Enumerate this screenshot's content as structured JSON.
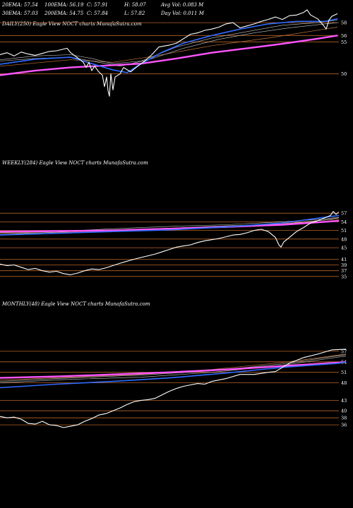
{
  "header": {
    "row1": [
      {
        "label": "20EMA",
        "value": "57.54"
      },
      {
        "label": "100EMA",
        "value": "56.19"
      },
      {
        "label": "C",
        "value": "57.91"
      },
      {
        "label": "H",
        "value": "58.07"
      },
      {
        "label": "Avg Vol",
        "value": "0.083 M"
      }
    ],
    "row2": [
      {
        "label": "30EMA",
        "value": "57.03"
      },
      {
        "label": "200EMA",
        "value": "54.75"
      },
      {
        "label": "C",
        "value": "57.84"
      },
      {
        "label": "L",
        "value": "57.82"
      },
      {
        "label": "Day Vol",
        "value": "0.011 M"
      }
    ]
  },
  "colors": {
    "background": "#000000",
    "price": "#ffffff",
    "ema_blue": "#2f6bff",
    "ema_magenta": "#ff55ff",
    "level_line": "#b8642a",
    "ema_minor": "#c8c8c8",
    "ema_brown": "#c87a3a"
  },
  "chart_data": [
    {
      "type": "line",
      "panel": "daily",
      "title": "DAILY(250) Eagle   View  NOCT charts MunafaSutra.com",
      "ylim": [
        45,
        60
      ],
      "y_ticks": [
        58,
        56,
        55,
        50
      ],
      "levels": [
        58,
        56,
        55,
        50
      ],
      "x_points": 250,
      "series": {
        "price": [
          [
            0,
            53.0
          ],
          [
            10,
            53.3
          ],
          [
            20,
            52.8
          ],
          [
            30,
            53.4
          ],
          [
            40,
            53.1
          ],
          [
            50,
            52.9
          ],
          [
            60,
            53.2
          ],
          [
            70,
            53.5
          ],
          [
            80,
            53.6
          ],
          [
            95,
            54.0
          ],
          [
            100,
            53.3
          ],
          [
            110,
            52.5
          ],
          [
            118,
            51.8
          ],
          [
            122,
            51.0
          ],
          [
            126,
            51.8
          ],
          [
            130,
            50.5
          ],
          [
            134,
            51.2
          ],
          [
            140,
            50.3
          ],
          [
            145,
            49.8
          ],
          [
            148,
            48.0
          ],
          [
            151,
            49.5
          ],
          [
            153,
            47.4
          ],
          [
            155,
            46.5
          ],
          [
            157,
            50.0
          ],
          [
            160,
            47.5
          ],
          [
            163,
            49.5
          ],
          [
            170,
            50.0
          ],
          [
            175,
            51.0
          ],
          [
            185,
            50.3
          ],
          [
            195,
            51.2
          ],
          [
            205,
            52.0
          ],
          [
            215,
            53.0
          ],
          [
            225,
            54.2
          ],
          [
            240,
            54.5
          ],
          [
            250,
            54.8
          ],
          [
            260,
            55.5
          ],
          [
            270,
            56.2
          ],
          [
            280,
            56.4
          ],
          [
            290,
            56.8
          ],
          [
            300,
            57.0
          ],
          [
            310,
            57.3
          ],
          [
            320,
            57.8
          ],
          [
            330,
            58.0
          ],
          [
            340,
            57.2
          ],
          [
            350,
            57.5
          ],
          [
            360,
            57.8
          ],
          [
            370,
            58.2
          ],
          [
            380,
            58.5
          ],
          [
            390,
            58.9
          ],
          [
            400,
            58.5
          ],
          [
            410,
            59.1
          ],
          [
            420,
            59.2
          ],
          [
            430,
            59.6
          ],
          [
            435,
            60.0
          ],
          [
            440,
            59.2
          ],
          [
            450,
            58.6
          ],
          [
            458,
            57.6
          ],
          [
            462,
            57.0
          ],
          [
            466,
            58.4
          ],
          [
            470,
            59.0
          ],
          [
            478,
            59.4
          ]
        ],
        "ema_blue": [
          [
            0,
            51.5
          ],
          [
            50,
            52.3
          ],
          [
            100,
            52.6
          ],
          [
            130,
            51.6
          ],
          [
            160,
            50.6
          ],
          [
            180,
            50.2
          ],
          [
            200,
            51.6
          ],
          [
            230,
            53.4
          ],
          [
            260,
            54.8
          ],
          [
            300,
            56.0
          ],
          [
            340,
            57.0
          ],
          [
            380,
            57.8
          ],
          [
            420,
            58.2
          ],
          [
            460,
            58.2
          ],
          [
            478,
            58.6
          ]
        ],
        "ema_magenta": [
          [
            0,
            49.8
          ],
          [
            50,
            50.5
          ],
          [
            100,
            51.0
          ],
          [
            150,
            51.3
          ],
          [
            200,
            51.6
          ],
          [
            250,
            52.4
          ],
          [
            300,
            53.3
          ],
          [
            350,
            54.0
          ],
          [
            400,
            54.7
          ],
          [
            450,
            55.5
          ],
          [
            478,
            56.0
          ]
        ],
        "ema_minor_1": [
          [
            0,
            52.2
          ],
          [
            50,
            52.8
          ],
          [
            100,
            53.0
          ],
          [
            130,
            52.4
          ],
          [
            160,
            51.6
          ],
          [
            200,
            52.0
          ],
          [
            250,
            54.2
          ],
          [
            300,
            55.6
          ],
          [
            350,
            56.6
          ],
          [
            400,
            57.6
          ],
          [
            450,
            58.0
          ],
          [
            478,
            58.4
          ]
        ],
        "ema_minor_2": [
          [
            0,
            52.0
          ],
          [
            50,
            52.4
          ],
          [
            100,
            52.6
          ],
          [
            140,
            51.8
          ],
          [
            170,
            51.2
          ],
          [
            210,
            52.2
          ],
          [
            260,
            54.0
          ],
          [
            310,
            55.4
          ],
          [
            360,
            56.4
          ],
          [
            410,
            57.2
          ],
          [
            460,
            57.8
          ],
          [
            478,
            58.0
          ]
        ],
        "ema_brown": [
          [
            0,
            51.2
          ],
          [
            100,
            52.2
          ],
          [
            160,
            51.8
          ],
          [
            220,
            52.8
          ],
          [
            300,
            54.4
          ],
          [
            380,
            55.6
          ],
          [
            460,
            57.0
          ],
          [
            478,
            57.3
          ]
        ]
      }
    },
    {
      "type": "line",
      "panel": "weekly",
      "title": "WEEKLY(284) Eagle   View  NOCT charts MunafaSutra.com",
      "ylim": [
        33,
        59
      ],
      "y_ticks": [
        57,
        54,
        51,
        48,
        45,
        41,
        39,
        37,
        35
      ],
      "levels": [
        57,
        54,
        51,
        48,
        45,
        41,
        39,
        37,
        35
      ],
      "x_points": 284,
      "series": {
        "price": [
          [
            0,
            39.3
          ],
          [
            10,
            38.8
          ],
          [
            20,
            39.0
          ],
          [
            30,
            38.2
          ],
          [
            40,
            37.4
          ],
          [
            50,
            37.8
          ],
          [
            60,
            37.0
          ],
          [
            70,
            36.5
          ],
          [
            80,
            36.8
          ],
          [
            90,
            36.0
          ],
          [
            100,
            35.6
          ],
          [
            110,
            36.2
          ],
          [
            120,
            37.0
          ],
          [
            130,
            37.6
          ],
          [
            140,
            37.4
          ],
          [
            150,
            38.0
          ],
          [
            160,
            38.8
          ],
          [
            170,
            39.6
          ],
          [
            180,
            40.3
          ],
          [
            190,
            41.0
          ],
          [
            200,
            41.6
          ],
          [
            210,
            42.2
          ],
          [
            220,
            42.8
          ],
          [
            230,
            43.6
          ],
          [
            240,
            44.4
          ],
          [
            250,
            45.2
          ],
          [
            260,
            45.6
          ],
          [
            270,
            46.0
          ],
          [
            280,
            46.8
          ],
          [
            290,
            47.4
          ],
          [
            300,
            47.8
          ],
          [
            310,
            48.2
          ],
          [
            320,
            48.8
          ],
          [
            330,
            49.4
          ],
          [
            340,
            49.6
          ],
          [
            350,
            50.2
          ],
          [
            360,
            51.0
          ],
          [
            370,
            51.4
          ],
          [
            380,
            50.6
          ],
          [
            390,
            48.6
          ],
          [
            395,
            46.0
          ],
          [
            398,
            45.2
          ],
          [
            402,
            47.0
          ],
          [
            410,
            48.6
          ],
          [
            420,
            50.6
          ],
          [
            430,
            52.0
          ],
          [
            440,
            53.6
          ],
          [
            450,
            54.4
          ],
          [
            460,
            55.4
          ],
          [
            468,
            56.2
          ],
          [
            472,
            57.6
          ],
          [
            476,
            56.6
          ],
          [
            480,
            57.4
          ]
        ],
        "ema_blue": [
          [
            0,
            49.4
          ],
          [
            80,
            50.0
          ],
          [
            160,
            50.6
          ],
          [
            240,
            51.2
          ],
          [
            320,
            52.2
          ],
          [
            400,
            53.6
          ],
          [
            460,
            55.6
          ],
          [
            480,
            56.2
          ]
        ],
        "ema_magenta": [
          [
            0,
            50.6
          ],
          [
            80,
            50.8
          ],
          [
            160,
            51.0
          ],
          [
            240,
            51.6
          ],
          [
            320,
            52.2
          ],
          [
            400,
            53.0
          ],
          [
            460,
            54.0
          ],
          [
            480,
            54.4
          ]
        ],
        "ema_minor_1": [
          [
            0,
            49.6
          ],
          [
            80,
            50.4
          ],
          [
            160,
            51.2
          ],
          [
            240,
            51.8
          ],
          [
            320,
            52.6
          ],
          [
            400,
            53.2
          ],
          [
            460,
            54.6
          ],
          [
            480,
            55.4
          ]
        ],
        "ema_minor_2": [
          [
            0,
            50.2
          ],
          [
            80,
            50.6
          ],
          [
            160,
            51.6
          ],
          [
            240,
            52.4
          ],
          [
            320,
            53.0
          ],
          [
            400,
            54.0
          ],
          [
            460,
            55.0
          ],
          [
            480,
            55.6
          ]
        ],
        "ema_brown": [
          [
            0,
            50.0
          ],
          [
            100,
            50.4
          ],
          [
            200,
            51.0
          ],
          [
            300,
            52.0
          ],
          [
            400,
            53.4
          ],
          [
            480,
            55.0
          ]
        ]
      }
    },
    {
      "type": "line",
      "panel": "monthly",
      "title": "MONTHLY(48) Eagle   View  NOCT charts MunafaSutra.com",
      "ylim": [
        34,
        59
      ],
      "y_ticks": [
        57,
        54,
        51,
        48,
        43,
        40,
        38,
        36
      ],
      "levels": [
        57,
        54,
        51,
        48,
        43,
        40,
        38,
        36
      ],
      "x_points": 48,
      "series": {
        "price": [
          [
            0,
            38.4
          ],
          [
            10,
            38.0
          ],
          [
            20,
            38.2
          ],
          [
            30,
            37.6
          ],
          [
            40,
            36.4
          ],
          [
            50,
            36.2
          ],
          [
            60,
            37.0
          ],
          [
            70,
            36.0
          ],
          [
            80,
            35.8
          ],
          [
            90,
            35.2
          ],
          [
            100,
            35.6
          ],
          [
            110,
            36.0
          ],
          [
            120,
            37.0
          ],
          [
            130,
            37.8
          ],
          [
            140,
            38.8
          ],
          [
            150,
            39.2
          ],
          [
            160,
            40.0
          ],
          [
            170,
            40.8
          ],
          [
            180,
            41.8
          ],
          [
            190,
            42.6
          ],
          [
            200,
            43.0
          ],
          [
            210,
            43.2
          ],
          [
            220,
            43.6
          ],
          [
            230,
            44.6
          ],
          [
            240,
            45.6
          ],
          [
            250,
            46.4
          ],
          [
            260,
            47.0
          ],
          [
            270,
            47.4
          ],
          [
            280,
            47.8
          ],
          [
            290,
            47.6
          ],
          [
            300,
            48.4
          ],
          [
            320,
            49.2
          ],
          [
            340,
            50.4
          ],
          [
            360,
            50.4
          ],
          [
            380,
            51.0
          ],
          [
            390,
            51.2
          ],
          [
            410,
            53.6
          ],
          [
            430,
            55.2
          ],
          [
            450,
            56.2
          ],
          [
            470,
            57.4
          ],
          [
            490,
            57.6
          ]
        ],
        "ema_blue": [
          [
            0,
            46.6
          ],
          [
            80,
            47.6
          ],
          [
            160,
            48.4
          ],
          [
            240,
            49.4
          ],
          [
            320,
            50.8
          ],
          [
            400,
            52.4
          ],
          [
            480,
            53.6
          ],
          [
            490,
            54.0
          ]
        ],
        "ema_magenta": [
          [
            0,
            49.4
          ],
          [
            80,
            49.8
          ],
          [
            160,
            50.4
          ],
          [
            240,
            51.0
          ],
          [
            320,
            51.8
          ],
          [
            400,
            52.8
          ],
          [
            480,
            53.8
          ],
          [
            490,
            54.0
          ]
        ],
        "ema_minor_1": [
          [
            0,
            48.0
          ],
          [
            100,
            49.0
          ],
          [
            200,
            49.6
          ],
          [
            300,
            51.0
          ],
          [
            400,
            53.0
          ],
          [
            480,
            55.4
          ],
          [
            490,
            55.6
          ]
        ],
        "ema_minor_2": [
          [
            0,
            48.4
          ],
          [
            100,
            49.4
          ],
          [
            200,
            50.2
          ],
          [
            300,
            51.4
          ],
          [
            400,
            53.4
          ],
          [
            480,
            55.8
          ],
          [
            490,
            56.0
          ]
        ],
        "ema_brown": [
          [
            0,
            48.8
          ],
          [
            100,
            49.6
          ],
          [
            200,
            50.4
          ],
          [
            300,
            51.8
          ],
          [
            400,
            53.8
          ],
          [
            490,
            56.2
          ]
        ]
      }
    }
  ]
}
